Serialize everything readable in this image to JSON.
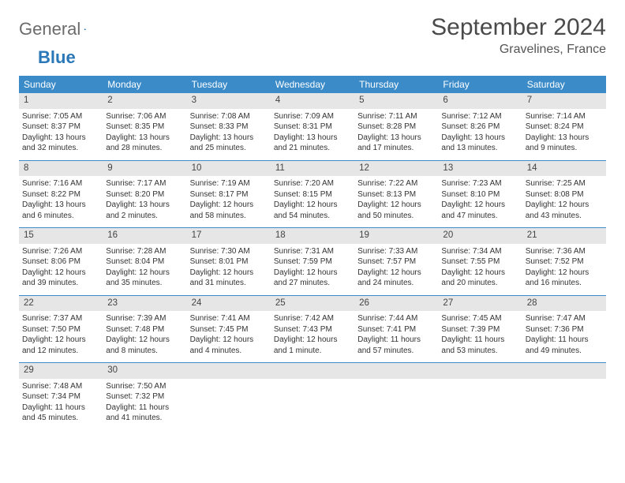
{
  "logo": {
    "part1": "General",
    "part2": "Blue"
  },
  "title": "September 2024",
  "location": "Gravelines, France",
  "colors": {
    "header_bg": "#3b8bc9",
    "header_text": "#ffffff",
    "daynum_bg": "#e6e6e6",
    "divider": "#3b8bc9",
    "body_text": "#333333",
    "logo_gray": "#6b6b6b",
    "logo_blue": "#2a78b8"
  },
  "typography": {
    "title_fontsize_pt": 22,
    "location_fontsize_pt": 12,
    "dayhead_fontsize_pt": 9,
    "cell_fontsize_pt": 7.5
  },
  "day_names": [
    "Sunday",
    "Monday",
    "Tuesday",
    "Wednesday",
    "Thursday",
    "Friday",
    "Saturday"
  ],
  "weeks": [
    [
      {
        "n": "1",
        "sunrise": "Sunrise: 7:05 AM",
        "sunset": "Sunset: 8:37 PM",
        "d1": "Daylight: 13 hours",
        "d2": "and 32 minutes."
      },
      {
        "n": "2",
        "sunrise": "Sunrise: 7:06 AM",
        "sunset": "Sunset: 8:35 PM",
        "d1": "Daylight: 13 hours",
        "d2": "and 28 minutes."
      },
      {
        "n": "3",
        "sunrise": "Sunrise: 7:08 AM",
        "sunset": "Sunset: 8:33 PM",
        "d1": "Daylight: 13 hours",
        "d2": "and 25 minutes."
      },
      {
        "n": "4",
        "sunrise": "Sunrise: 7:09 AM",
        "sunset": "Sunset: 8:31 PM",
        "d1": "Daylight: 13 hours",
        "d2": "and 21 minutes."
      },
      {
        "n": "5",
        "sunrise": "Sunrise: 7:11 AM",
        "sunset": "Sunset: 8:28 PM",
        "d1": "Daylight: 13 hours",
        "d2": "and 17 minutes."
      },
      {
        "n": "6",
        "sunrise": "Sunrise: 7:12 AM",
        "sunset": "Sunset: 8:26 PM",
        "d1": "Daylight: 13 hours",
        "d2": "and 13 minutes."
      },
      {
        "n": "7",
        "sunrise": "Sunrise: 7:14 AM",
        "sunset": "Sunset: 8:24 PM",
        "d1": "Daylight: 13 hours",
        "d2": "and 9 minutes."
      }
    ],
    [
      {
        "n": "8",
        "sunrise": "Sunrise: 7:16 AM",
        "sunset": "Sunset: 8:22 PM",
        "d1": "Daylight: 13 hours",
        "d2": "and 6 minutes."
      },
      {
        "n": "9",
        "sunrise": "Sunrise: 7:17 AM",
        "sunset": "Sunset: 8:20 PM",
        "d1": "Daylight: 13 hours",
        "d2": "and 2 minutes."
      },
      {
        "n": "10",
        "sunrise": "Sunrise: 7:19 AM",
        "sunset": "Sunset: 8:17 PM",
        "d1": "Daylight: 12 hours",
        "d2": "and 58 minutes."
      },
      {
        "n": "11",
        "sunrise": "Sunrise: 7:20 AM",
        "sunset": "Sunset: 8:15 PM",
        "d1": "Daylight: 12 hours",
        "d2": "and 54 minutes."
      },
      {
        "n": "12",
        "sunrise": "Sunrise: 7:22 AM",
        "sunset": "Sunset: 8:13 PM",
        "d1": "Daylight: 12 hours",
        "d2": "and 50 minutes."
      },
      {
        "n": "13",
        "sunrise": "Sunrise: 7:23 AM",
        "sunset": "Sunset: 8:10 PM",
        "d1": "Daylight: 12 hours",
        "d2": "and 47 minutes."
      },
      {
        "n": "14",
        "sunrise": "Sunrise: 7:25 AM",
        "sunset": "Sunset: 8:08 PM",
        "d1": "Daylight: 12 hours",
        "d2": "and 43 minutes."
      }
    ],
    [
      {
        "n": "15",
        "sunrise": "Sunrise: 7:26 AM",
        "sunset": "Sunset: 8:06 PM",
        "d1": "Daylight: 12 hours",
        "d2": "and 39 minutes."
      },
      {
        "n": "16",
        "sunrise": "Sunrise: 7:28 AM",
        "sunset": "Sunset: 8:04 PM",
        "d1": "Daylight: 12 hours",
        "d2": "and 35 minutes."
      },
      {
        "n": "17",
        "sunrise": "Sunrise: 7:30 AM",
        "sunset": "Sunset: 8:01 PM",
        "d1": "Daylight: 12 hours",
        "d2": "and 31 minutes."
      },
      {
        "n": "18",
        "sunrise": "Sunrise: 7:31 AM",
        "sunset": "Sunset: 7:59 PM",
        "d1": "Daylight: 12 hours",
        "d2": "and 27 minutes."
      },
      {
        "n": "19",
        "sunrise": "Sunrise: 7:33 AM",
        "sunset": "Sunset: 7:57 PM",
        "d1": "Daylight: 12 hours",
        "d2": "and 24 minutes."
      },
      {
        "n": "20",
        "sunrise": "Sunrise: 7:34 AM",
        "sunset": "Sunset: 7:55 PM",
        "d1": "Daylight: 12 hours",
        "d2": "and 20 minutes."
      },
      {
        "n": "21",
        "sunrise": "Sunrise: 7:36 AM",
        "sunset": "Sunset: 7:52 PM",
        "d1": "Daylight: 12 hours",
        "d2": "and 16 minutes."
      }
    ],
    [
      {
        "n": "22",
        "sunrise": "Sunrise: 7:37 AM",
        "sunset": "Sunset: 7:50 PM",
        "d1": "Daylight: 12 hours",
        "d2": "and 12 minutes."
      },
      {
        "n": "23",
        "sunrise": "Sunrise: 7:39 AM",
        "sunset": "Sunset: 7:48 PM",
        "d1": "Daylight: 12 hours",
        "d2": "and 8 minutes."
      },
      {
        "n": "24",
        "sunrise": "Sunrise: 7:41 AM",
        "sunset": "Sunset: 7:45 PM",
        "d1": "Daylight: 12 hours",
        "d2": "and 4 minutes."
      },
      {
        "n": "25",
        "sunrise": "Sunrise: 7:42 AM",
        "sunset": "Sunset: 7:43 PM",
        "d1": "Daylight: 12 hours",
        "d2": "and 1 minute."
      },
      {
        "n": "26",
        "sunrise": "Sunrise: 7:44 AM",
        "sunset": "Sunset: 7:41 PM",
        "d1": "Daylight: 11 hours",
        "d2": "and 57 minutes."
      },
      {
        "n": "27",
        "sunrise": "Sunrise: 7:45 AM",
        "sunset": "Sunset: 7:39 PM",
        "d1": "Daylight: 11 hours",
        "d2": "and 53 minutes."
      },
      {
        "n": "28",
        "sunrise": "Sunrise: 7:47 AM",
        "sunset": "Sunset: 7:36 PM",
        "d1": "Daylight: 11 hours",
        "d2": "and 49 minutes."
      }
    ],
    [
      {
        "n": "29",
        "sunrise": "Sunrise: 7:48 AM",
        "sunset": "Sunset: 7:34 PM",
        "d1": "Daylight: 11 hours",
        "d2": "and 45 minutes."
      },
      {
        "n": "30",
        "sunrise": "Sunrise: 7:50 AM",
        "sunset": "Sunset: 7:32 PM",
        "d1": "Daylight: 11 hours",
        "d2": "and 41 minutes."
      },
      {
        "empty": true
      },
      {
        "empty": true
      },
      {
        "empty": true
      },
      {
        "empty": true
      },
      {
        "empty": true
      }
    ]
  ]
}
